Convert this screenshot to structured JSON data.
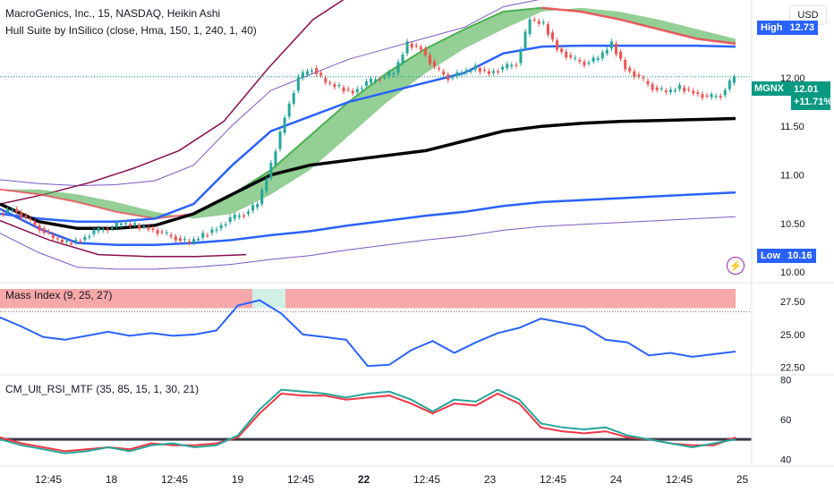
{
  "header": {
    "symbol_line": "MacroGenics, Inc., 15, NASDAQ, Heikin Ashi",
    "indicator_line": "Hull Suite by InSilico (close, Hma, 150, 1, 240, 1, 40)",
    "currency_button": "USD"
  },
  "price_tags": {
    "high_label": "High",
    "high_value": "12.73",
    "symbol": "MGNX",
    "last_value": "12.01",
    "change_pct": "+11.71%",
    "low_label": "Low",
    "low_value": "10.16"
  },
  "panes": {
    "mass_index_title": "Mass Index (9, 25, 27)",
    "rsi_title": "CM_Ult_RSI_MTF (35, 85, 15, 1, 30, 21)"
  },
  "colors": {
    "up": "#26a69a",
    "down": "#ef5350",
    "hull_up": "#4caf50",
    "hull_down": "#f23645",
    "band": "#2962ff",
    "outer_band": "#7e57c2",
    "keltner_dark": "#880e4f",
    "mid_line": "#000000",
    "mass_line": "#2962ff",
    "mass_fill": "#f7a8a8",
    "rsi_green": "#26a69a",
    "rsi_red": "#f23645"
  },
  "chart_data": [
    {
      "type": "candlestick",
      "title": "MacroGenics, Inc., 15, NASDAQ, Heikin Ashi",
      "x_ticks": [
        "12:45",
        "18",
        "12:45",
        "19",
        "12:45",
        "22",
        "12:45",
        "23",
        "12:45",
        "24",
        "12:45",
        "25"
      ],
      "y_ticks": [
        "12.50",
        "12.00",
        "11.50",
        "11.00",
        "10.50",
        "10.00"
      ],
      "ylim": [
        9.9,
        12.8
      ],
      "high": 12.73,
      "low": 10.16,
      "last": 12.01,
      "change_pct": "+11.71%",
      "close_series": [
        10.65,
        10.55,
        10.45,
        10.35,
        10.3,
        10.33,
        10.42,
        10.45,
        10.5,
        10.48,
        10.45,
        10.4,
        10.35,
        10.3,
        10.38,
        10.45,
        10.55,
        10.6,
        10.7,
        11.1,
        11.6,
        12.0,
        12.1,
        11.95,
        11.9,
        11.85,
        11.95,
        12.0,
        12.05,
        12.35,
        12.3,
        12.1,
        12.0,
        12.05,
        12.1,
        12.05,
        12.1,
        12.15,
        12.6,
        12.55,
        12.3,
        12.2,
        12.15,
        12.2,
        12.35,
        12.1,
        12.0,
        11.9,
        11.85,
        11.9,
        11.85,
        11.8,
        11.82,
        12.01
      ],
      "series": [
        {
          "name": "Hull",
          "values": [
            10.85,
            10.8,
            10.72,
            10.62,
            10.55,
            10.6,
            10.8,
            11.05,
            11.4,
            11.75,
            12.05,
            12.3,
            12.5,
            12.68,
            12.72,
            12.68,
            12.6,
            12.5,
            12.4,
            12.35
          ]
        },
        {
          "name": "Band upper",
          "values": [
            10.6,
            10.55,
            10.52,
            10.52,
            10.55,
            10.7,
            11.1,
            11.45,
            11.6,
            11.75,
            11.85,
            11.95,
            12.05,
            12.25,
            12.32,
            12.33,
            12.33,
            12.33,
            12.33,
            12.32
          ]
        },
        {
          "name": "Midline",
          "values": [
            10.7,
            10.52,
            10.45,
            10.45,
            10.48,
            10.6,
            10.8,
            11.0,
            11.1,
            11.15,
            11.2,
            11.25,
            11.35,
            11.45,
            11.5,
            11.53,
            11.55,
            11.56,
            11.57,
            11.58
          ]
        },
        {
          "name": "Band lower",
          "values": [
            10.65,
            10.45,
            10.3,
            10.28,
            10.28,
            10.3,
            10.33,
            10.38,
            10.42,
            10.48,
            10.53,
            10.58,
            10.62,
            10.68,
            10.72,
            10.74,
            10.76,
            10.78,
            10.8,
            10.82
          ]
        }
      ]
    },
    {
      "type": "line",
      "title": "Mass Index (9, 25, 27)",
      "y_ticks": [
        "27.50",
        "25.00",
        "22.50"
      ],
      "ylim": [
        22.0,
        28.8
      ],
      "threshold": 27.0,
      "values": [
        26.3,
        25.6,
        24.8,
        24.6,
        24.9,
        25.2,
        24.9,
        25.1,
        24.9,
        25.0,
        25.3,
        27.2,
        27.6,
        26.6,
        25.0,
        24.8,
        24.6,
        22.6,
        22.7,
        23.8,
        24.5,
        23.6,
        24.4,
        25.1,
        25.5,
        26.2,
        25.9,
        25.6,
        24.6,
        24.4,
        23.4,
        23.6,
        23.3,
        23.5,
        23.7
      ]
    },
    {
      "type": "line",
      "title": "CM_Ult_RSI_MTF (35, 85, 15, 1, 30, 21)",
      "y_ticks": [
        "80",
        "60",
        "40"
      ],
      "ylim": [
        37,
        82
      ],
      "threshold": 50,
      "series": [
        {
          "name": "RSI green",
          "values": [
            50,
            47,
            45,
            43,
            44,
            46,
            44,
            47,
            48,
            46,
            47,
            52,
            65,
            75,
            74,
            73,
            71,
            73,
            74,
            70,
            64,
            70,
            69,
            75,
            70,
            58,
            56,
            55,
            56,
            52,
            50,
            48,
            46,
            48,
            50
          ]
        },
        {
          "name": "RSI red",
          "values": [
            51,
            48,
            46,
            44,
            45,
            46,
            45,
            48,
            47,
            47,
            48,
            51,
            63,
            73,
            72,
            72,
            70,
            71,
            72,
            68,
            63,
            68,
            67,
            73,
            68,
            56,
            54,
            53,
            54,
            51,
            50,
            48,
            47,
            47,
            51
          ]
        }
      ]
    }
  ]
}
